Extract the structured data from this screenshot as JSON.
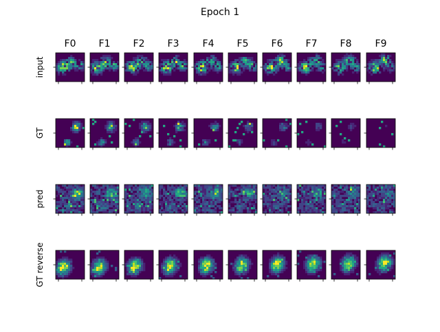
{
  "figure": {
    "title": "Epoch 1",
    "column_labels": [
      "F0",
      "F1",
      "F2",
      "F3",
      "F4",
      "F5",
      "F6",
      "F7",
      "F8",
      "F9"
    ],
    "rows": [
      {
        "label": "input",
        "kind": "input"
      },
      {
        "label": "GT",
        "kind": "gt"
      },
      {
        "label": "pred",
        "kind": "pred"
      },
      {
        "label": "GT reverse",
        "kind": "gtrev"
      }
    ],
    "colormap": [
      "#440154",
      "#482475",
      "#414487",
      "#355f8d",
      "#2a788e",
      "#21918c",
      "#22a884",
      "#44bf70",
      "#7ad151",
      "#bddf26",
      "#fde725"
    ],
    "background_color": "#440154"
  }
}
